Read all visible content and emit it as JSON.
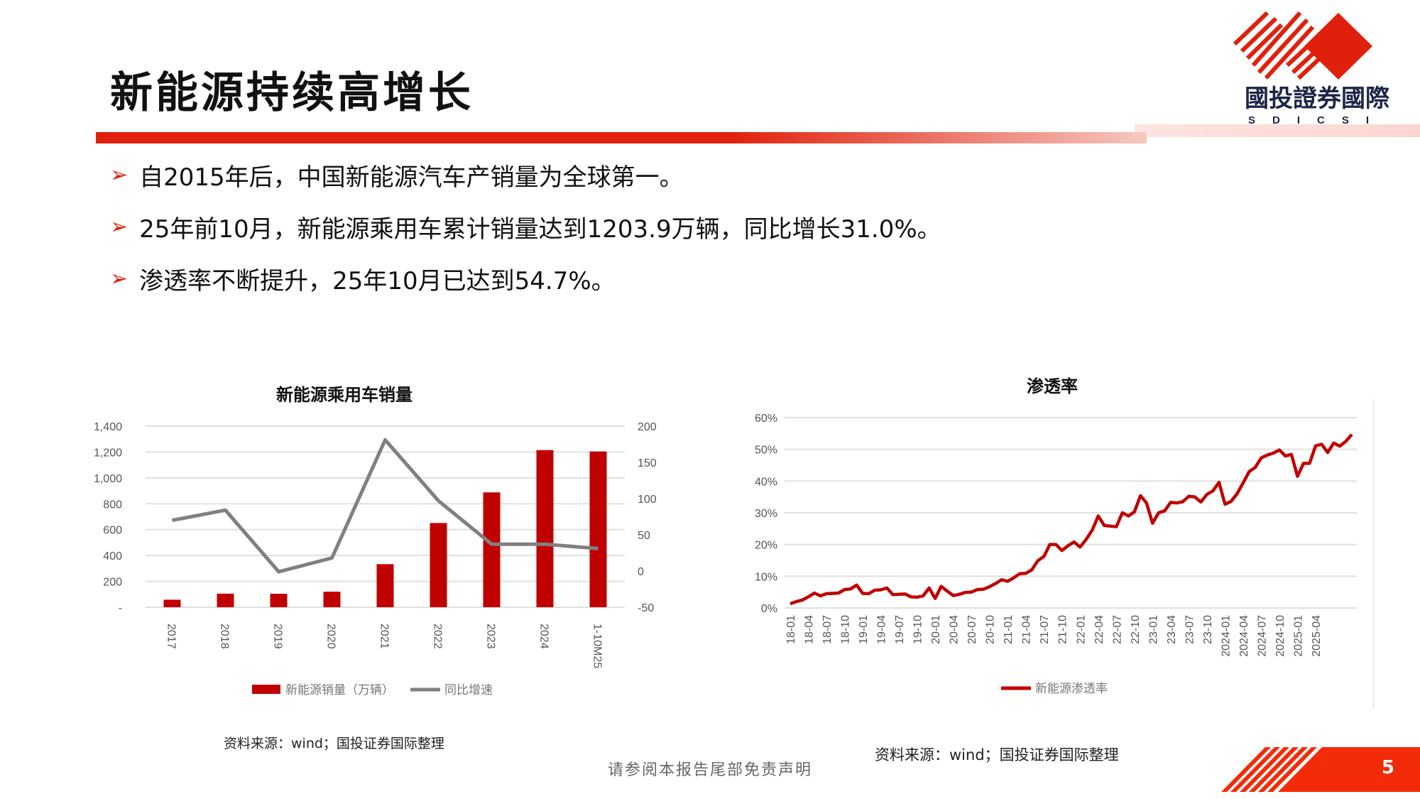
{
  "title": "新能源持续高增长",
  "logo": {
    "name_cn": "國投證券國際",
    "name_en": "SDICSI",
    "brand_color": "#e0200c",
    "text_color": "#1d2547"
  },
  "bullets": [
    "自2015年后，中国新能源汽车产销量为全球第一。",
    "25年前10月，新能源乘用车累计销量达到1203.9万辆，同比增长31.0%。",
    "渗透率不断提升，25年10月已达到54.7%。"
  ],
  "bullet_icon": "arrow-right-icon",
  "chart_data": [
    {
      "type": "bar+line",
      "title": "新能源乘用车销量",
      "categories": [
        "2017",
        "2018",
        "2019",
        "2020",
        "2021",
        "2022",
        "2023",
        "2024",
        "1-10M25"
      ],
      "series": [
        {
          "name": "新能源销量（万辆）",
          "type": "bar",
          "axis": "left",
          "color": "#c00000",
          "values": [
            58,
            105,
            104,
            120,
            333,
            651,
            888,
            1215,
            1204
          ]
        },
        {
          "name": "同比增速",
          "type": "line",
          "axis": "right",
          "color": "#808080",
          "values": [
            70,
            84,
            -1,
            18,
            181,
            97,
            37,
            37,
            31
          ]
        }
      ],
      "ylim_left": [
        0,
        1400
      ],
      "yticks_left": [
        "-",
        "200",
        "400",
        "600",
        "800",
        "1,000",
        "1,200",
        "1,400"
      ],
      "ylim_right": [
        -50,
        200
      ],
      "yticks_right": [
        "-50",
        "0",
        "50",
        "100",
        "150",
        "200"
      ],
      "grid": true,
      "legend": "bottom",
      "source": "资料来源：wind；国投证券国际整理"
    },
    {
      "type": "line",
      "title": "渗透率",
      "x": [
        "18-01",
        "18-02",
        "18-03",
        "18-04",
        "18-05",
        "18-06",
        "18-07",
        "18-08",
        "18-09",
        "18-10",
        "18-11",
        "18-12",
        "19-01",
        "19-02",
        "19-03",
        "19-04",
        "19-05",
        "19-06",
        "19-07",
        "19-08",
        "19-09",
        "19-10",
        "19-11",
        "19-12",
        "20-01",
        "20-02",
        "20-03",
        "20-04",
        "20-05",
        "20-06",
        "20-07",
        "20-08",
        "20-09",
        "20-10",
        "20-11",
        "20-12",
        "21-01",
        "21-02",
        "21-03",
        "21-04",
        "21-05",
        "21-06",
        "21-07",
        "21-08",
        "21-09",
        "21-10",
        "21-11",
        "21-12",
        "22-01",
        "22-02",
        "22-03",
        "22-04",
        "22-05",
        "22-06",
        "22-07",
        "22-08",
        "22-09",
        "22-10",
        "22-11",
        "22-12",
        "23-01",
        "23-02",
        "23-03",
        "23-04",
        "23-05",
        "23-06",
        "23-07",
        "23-08",
        "23-09",
        "23-10",
        "23-11",
        "23-12",
        "2024-01",
        "2024-02",
        "2024-03",
        "2024-04",
        "2024-05",
        "2024-06",
        "2024-07",
        "2024-08",
        "2024-09",
        "2024-10",
        "2024-11",
        "2024-12",
        "2025-01",
        "2025-02",
        "2025-03",
        "2025-04",
        "2025-05",
        "2025-06",
        "2025-07",
        "2025-08",
        "2025-09",
        "2025-10"
      ],
      "xticks": [
        "18-01",
        "18-04",
        "18-07",
        "18-10",
        "19-01",
        "19-04",
        "19-07",
        "19-10",
        "20-01",
        "20-04",
        "20-07",
        "20-10",
        "21-01",
        "21-04",
        "21-07",
        "21-10",
        "22-01",
        "22-04",
        "22-07",
        "22-10",
        "23-01",
        "23-04",
        "23-07",
        "23-10",
        "2024-01",
        "2024-04",
        "2024-07",
        "2024-10",
        "2025-01",
        "2025-04"
      ],
      "series": [
        {
          "name": "新能源渗透率",
          "color": "#c00000",
          "values": [
            1.3,
            2,
            2.5,
            3.5,
            4.7,
            3.8,
            4.5,
            4.6,
            4.7,
            5.8,
            6,
            7.2,
            4.6,
            4.5,
            5.6,
            5.7,
            6.3,
            4.2,
            4.3,
            4.4,
            3.5,
            3.4,
            3.8,
            6.3,
            3,
            6.8,
            5.3,
            3.9,
            4.3,
            4.9,
            5,
            5.8,
            5.9,
            6.7,
            7.7,
            8.9,
            8.4,
            9.5,
            10.8,
            10.9,
            12,
            14.9,
            16.2,
            20,
            20,
            18.1,
            19.6,
            20.8,
            19.2,
            21.6,
            24.5,
            29,
            26,
            25.8,
            25.6,
            30,
            29,
            30.3,
            35.4,
            33.1,
            26.7,
            30,
            30.6,
            33.3,
            33.1,
            33.5,
            35.2,
            35,
            33.4,
            35.8,
            36.9,
            39.6,
            32.7,
            33.6,
            36,
            39.4,
            43,
            44.3,
            47.3,
            48.2,
            48.8,
            49.8,
            47.9,
            48.4,
            41.5,
            45.6,
            45.6,
            51.1,
            51.6,
            49,
            52,
            51,
            52.5,
            54.7
          ]
        }
      ],
      "ylim": [
        0,
        60
      ],
      "yticks": [
        "0%",
        "10%",
        "20%",
        "30%",
        "40%",
        "50%",
        "60%"
      ],
      "grid": true,
      "legend": "bottom",
      "source": "资料来源：wind；国投证券国际整理"
    }
  ],
  "footer": {
    "disclaimer": "请参阅本报告尾部免责声明",
    "page_number": "5"
  }
}
